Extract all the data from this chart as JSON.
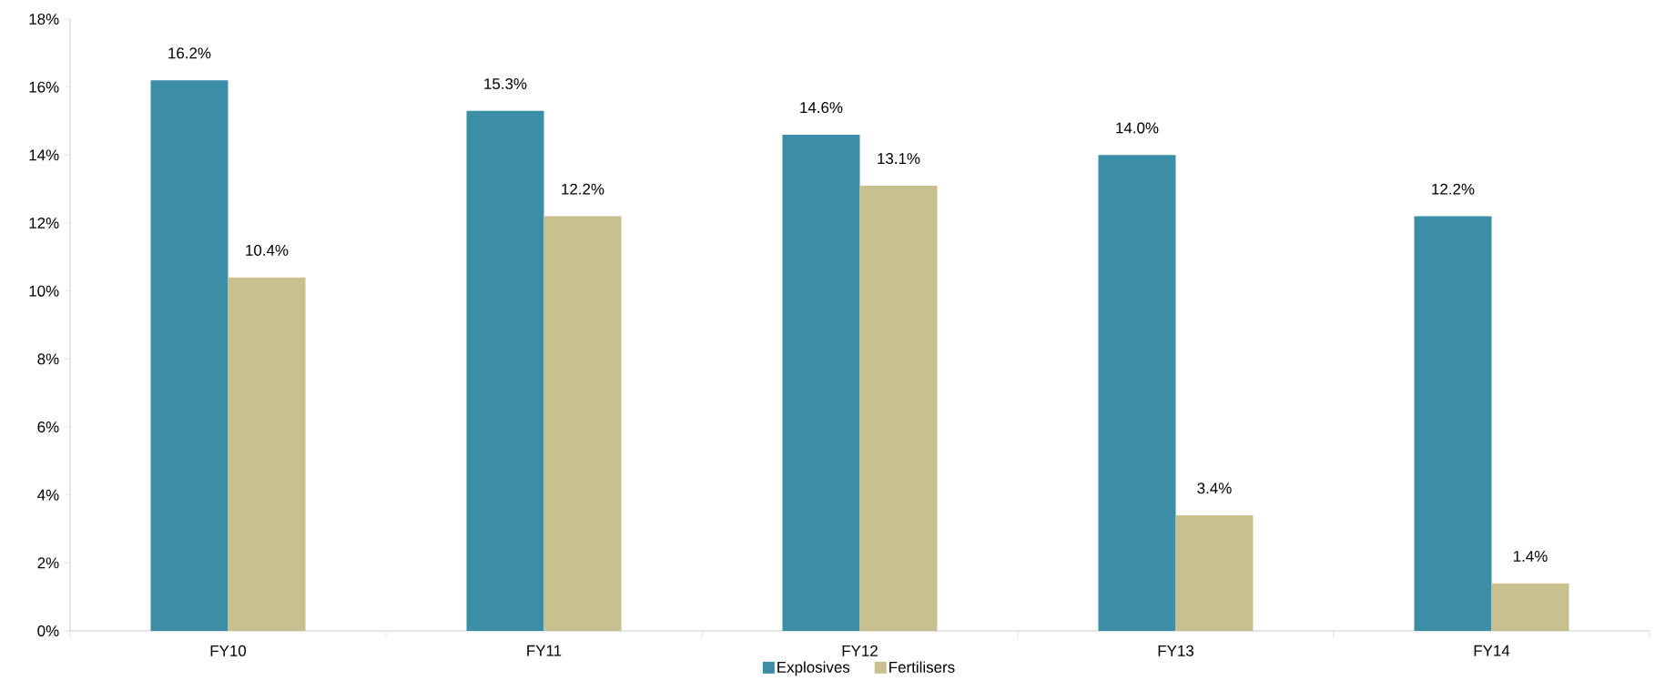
{
  "chart_data": {
    "type": "bar",
    "categories": [
      "FY10",
      "FY11",
      "FY12",
      "FY13",
      "FY14"
    ],
    "series": [
      {
        "name": "Explosives",
        "color": "#3b8ea6",
        "values": [
          16.2,
          15.3,
          14.6,
          14.0,
          12.2
        ],
        "value_labels": [
          "16.2%",
          "15.3%",
          "14.6%",
          "14.0%",
          "12.2%"
        ]
      },
      {
        "name": "Fertilisers",
        "color": "#c9c08f",
        "values": [
          10.4,
          12.2,
          13.1,
          3.4,
          1.4
        ],
        "value_labels": [
          "10.4%",
          "12.2%",
          "13.1%",
          "3.4%",
          "1.4%"
        ]
      }
    ],
    "ylim": [
      0,
      18
    ],
    "yticks": [
      {
        "value": 0,
        "label": "0%"
      },
      {
        "value": 2,
        "label": "2%"
      },
      {
        "value": 4,
        "label": "4%"
      },
      {
        "value": 6,
        "label": "6%"
      },
      {
        "value": 8,
        "label": "8%"
      },
      {
        "value": 10,
        "label": "10%"
      },
      {
        "value": 12,
        "label": "12%"
      },
      {
        "value": 14,
        "label": "14%"
      },
      {
        "value": 16,
        "label": "16%"
      },
      {
        "value": 18,
        "label": "18%"
      }
    ],
    "grid": false,
    "legend": "bottom"
  }
}
